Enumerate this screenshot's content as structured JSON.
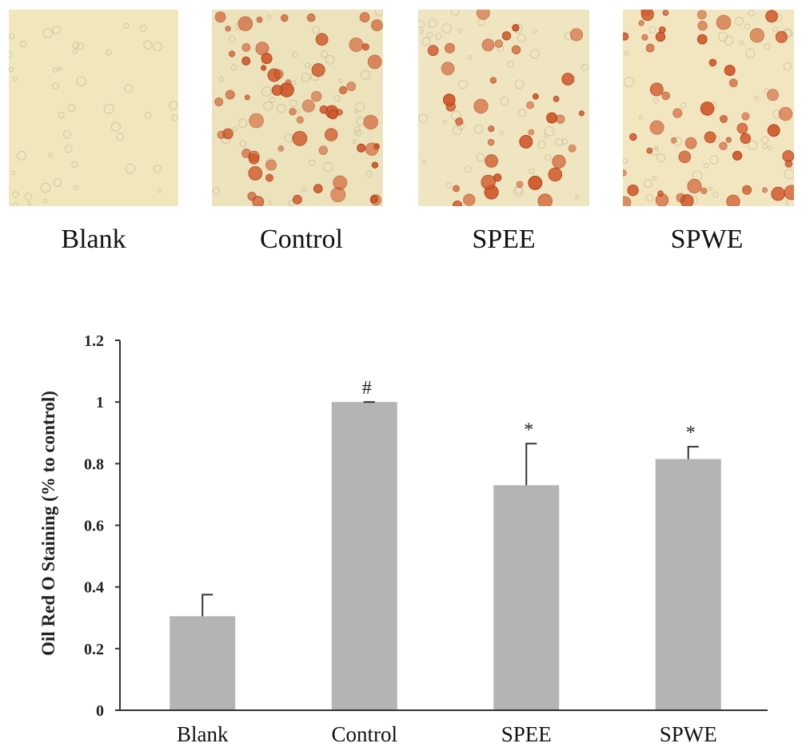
{
  "micrographs": {
    "labels": [
      "Blank",
      "Control",
      "SPEE",
      "SPWE"
    ],
    "background": [
      "#f1e7bd",
      "#ece2bb",
      "#efe5c1",
      "#f1e6c0"
    ],
    "stain_color": "#d2582a",
    "stain_density": [
      0,
      0.9,
      0.55,
      0.8
    ]
  },
  "chart_data": {
    "type": "bar",
    "categories": [
      "Blank",
      "Control",
      "SPEE",
      "SPWE"
    ],
    "values": [
      0.305,
      1.0,
      0.73,
      0.815
    ],
    "errors": [
      0.07,
      0.0,
      0.135,
      0.04
    ],
    "significance": [
      "",
      "#",
      "*",
      "*"
    ],
    "ylabel": "Oil Red O Staining (% to control)",
    "xlabel": "",
    "ylim": [
      0,
      1.2
    ],
    "yticks": [
      "0",
      "0.2",
      "0.4",
      "0.6",
      "0.8",
      "1",
      "1.2"
    ],
    "ytick_values": [
      0,
      0.2,
      0.4,
      0.6,
      0.8,
      1.0,
      1.2
    ],
    "bar_color": "#b4b4b4",
    "grid": false,
    "legend": "none"
  }
}
